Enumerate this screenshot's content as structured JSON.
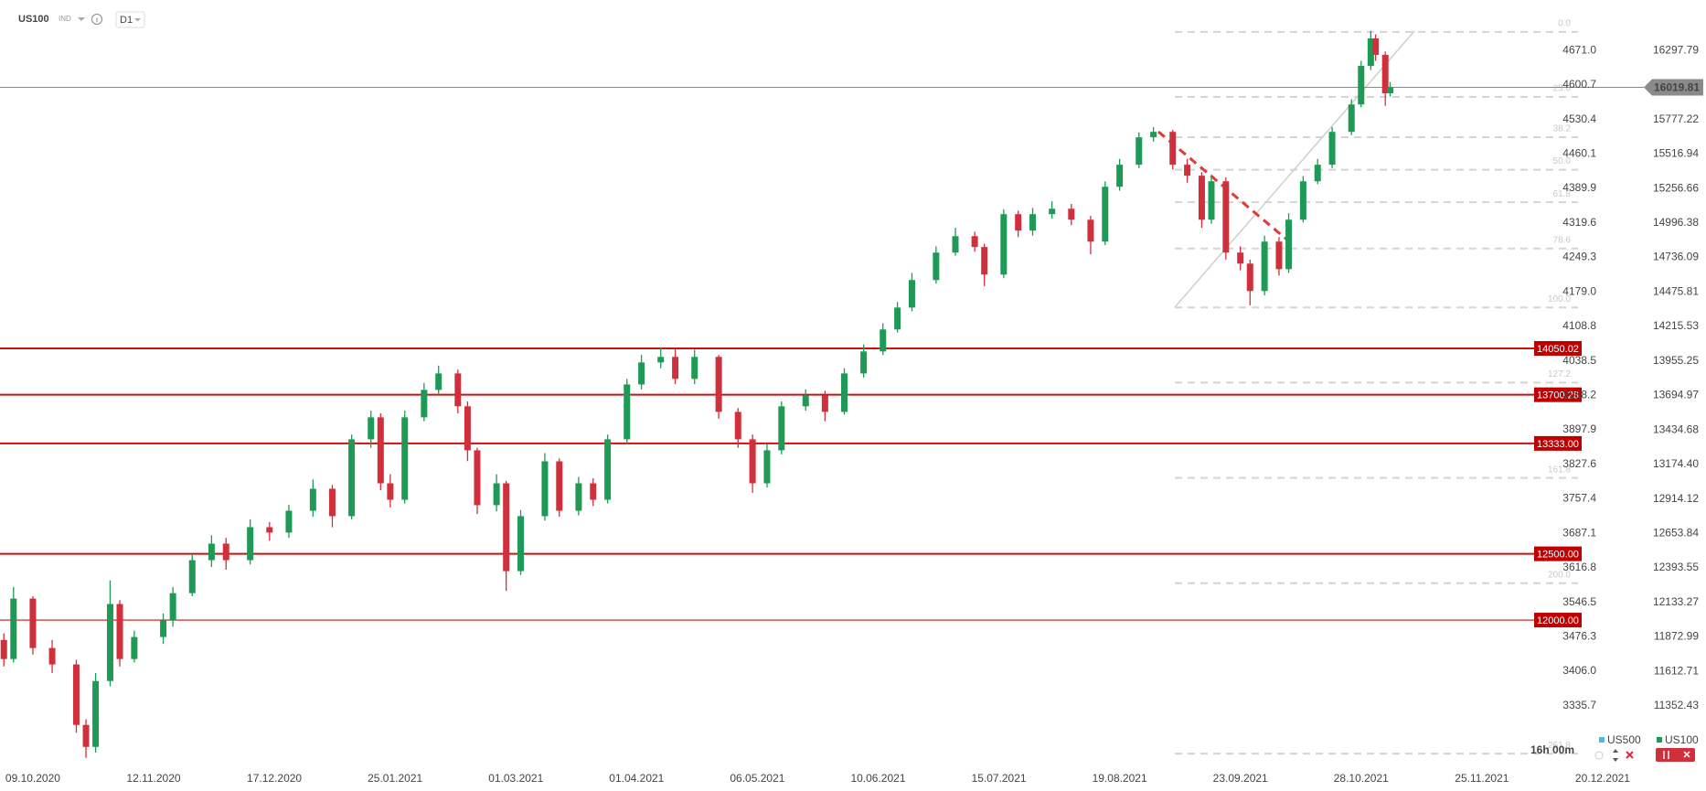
{
  "toolbar": {
    "symbol": "US100",
    "instrument_type": "IND",
    "interval": "D1"
  },
  "countdown": "16h 00m",
  "legend": [
    {
      "name": "US500",
      "color": "#4fb6e8"
    },
    {
      "name": "US100",
      "color": "#1f9a56"
    }
  ],
  "chart_data": {
    "type": "candlestick",
    "up_color": "#1f9a56",
    "down_color": "#d0303c",
    "xlim": [
      -6.8,
      346.4
    ],
    "xticks": [
      {
        "value": 0,
        "label": "09.10.2020"
      },
      {
        "value": 25,
        "label": "12.11.2020"
      },
      {
        "value": 50,
        "label": "17.12.2020"
      },
      {
        "value": 75,
        "label": "25.01.2021"
      },
      {
        "value": 100,
        "label": "01.03.2021"
      },
      {
        "value": 125,
        "label": "01.04.2021"
      },
      {
        "value": 150,
        "label": "06.05.2021"
      },
      {
        "value": 175,
        "label": "10.06.2021"
      },
      {
        "value": 200,
        "label": "15.07.2021"
      },
      {
        "value": 225,
        "label": "19.08.2021"
      },
      {
        "value": 250,
        "label": "23.09.2021"
      },
      {
        "value": 275,
        "label": "28.10.2021"
      },
      {
        "value": 300,
        "label": "25.11.2021"
      },
      {
        "value": 325,
        "label": "20.12.2021"
      }
    ],
    "ylim": [
      10855,
      16679
    ],
    "yticks": [
      16297.79,
      15777.22,
      15516.94,
      15256.66,
      14996.38,
      14736.09,
      14475.81,
      14215.53,
      13955.25,
      13694.97,
      13434.68,
      {
        "value": 13174.4,
        "label": "13174.40"
      },
      12914.12,
      12653.84,
      12393.55,
      12133.27,
      11872.99,
      11612.71,
      11352.43
    ],
    "y2lim": [
      3200.9,
      4774.0
    ],
    "y2ticks": [
      {
        "value": 4671,
        "label": "4671.0"
      },
      4600.7,
      4530.4,
      4460.1,
      4389.9,
      4319.6,
      4249.3,
      {
        "value": 4179,
        "label": "4179.0"
      },
      4108.8,
      4038.5,
      3968.2,
      3897.9,
      3827.6,
      3757.4,
      3687.1,
      3616.8,
      3546.5,
      3476.3,
      {
        "value": 3406,
        "label": "3406.0"
      },
      3335.7
    ],
    "current_price": 16019.81,
    "levels": [
      {
        "value": 14050.02,
        "label": "14050.02"
      },
      {
        "value": 13700.28,
        "label": "13700.28"
      },
      {
        "value": 13333,
        "label": "13333.00"
      },
      {
        "value": 12500,
        "label": "12500.00"
      },
      {
        "value": 12000,
        "label": "12000.00"
      }
    ],
    "fib_levels": [
      {
        "value": 16438.7,
        "label": "0.0"
      },
      {
        "value": 15947.7,
        "label": "23.6"
      },
      {
        "value": 15644.0,
        "label": "38.2"
      },
      {
        "value": 15398.5,
        "label": "50.0"
      },
      {
        "value": 15153.0,
        "label": "61.8"
      },
      {
        "value": 14803.5,
        "label": "78.6"
      },
      {
        "value": 14358.3,
        "label": "100.0"
      },
      {
        "value": 13792.4,
        "label": "127.2"
      },
      {
        "value": 13072.6,
        "label": "161.8"
      },
      {
        "value": 12277.9,
        "label": "200.0"
      },
      {
        "value": 10992.2,
        "label": "261.8"
      }
    ],
    "x": [
      -6,
      -4,
      0,
      4,
      9,
      11,
      13,
      16,
      18,
      21,
      27,
      29,
      33,
      37,
      40,
      45,
      49,
      53,
      58,
      62,
      66,
      70,
      72,
      74,
      77,
      81,
      84,
      88,
      90,
      92,
      96,
      98,
      101,
      106,
      109,
      113,
      116,
      119,
      123,
      126,
      130,
      133,
      137,
      142,
      146,
      149,
      152,
      155,
      160,
      164,
      168,
      172,
      176,
      179,
      182,
      187,
      191,
      195,
      197,
      201,
      204,
      207,
      211,
      215,
      219,
      222,
      225,
      229,
      232,
      236,
      239,
      242,
      244,
      247,
      250,
      252,
      255,
      258,
      260,
      263,
      266,
      269,
      273,
      275,
      277,
      278,
      280,
      281
    ],
    "open": [
      11850,
      11706,
      12162,
      11789,
      11665,
      11209,
      11043,
      11540,
      12121,
      11706,
      11872,
      11996,
      12203,
      12452,
      12577,
      12452,
      12701,
      12660,
      12825,
      12991,
      12784,
      13364,
      13530,
      13032,
      12908,
      13530,
      13737,
      13861,
      13613,
      13281,
      12867,
      13032,
      12369,
      12784,
      13198,
      12825,
      13032,
      12908,
      13364,
      13778,
      13944,
      13986,
      13820,
      13986,
      13571,
      13364,
      13032,
      13281,
      13613,
      13695,
      13571,
      13861,
      14027,
      14193,
      14358,
      14566,
      14773,
      14897,
      14815,
      14607,
      15063,
      14939,
      15063,
      15104,
      15021,
      14856,
      15270,
      15436,
      15643,
      15684,
      15436,
      15353,
      15021,
      15311,
      14773,
      14690,
      14483,
      14856,
      14648,
      15021,
      15311,
      15436,
      15684,
      15891,
      16182,
      16389,
      16265,
      15975
    ],
    "high": [
      11900,
      12250,
      12180,
      11850,
      11700,
      11250,
      11600,
      12300,
      12150,
      11920,
      12050,
      12250,
      12500,
      12640,
      12620,
      12760,
      12740,
      12870,
      13060,
      13020,
      13400,
      13580,
      13560,
      13100,
      13580,
      13790,
      13920,
      13890,
      13650,
      13300,
      13100,
      13050,
      12830,
      13260,
      13220,
      13080,
      13070,
      13400,
      13820,
      14000,
      14060,
      14050,
      14040,
      14000,
      13600,
      13400,
      13330,
      13650,
      13740,
      13730,
      13900,
      14080,
      14240,
      14400,
      14620,
      14820,
      14960,
      14930,
      14840,
      15100,
      15090,
      15110,
      15160,
      15140,
      15050,
      15310,
      15480,
      15680,
      15720,
      15700,
      15480,
      15380,
      15360,
      15340,
      14820,
      14720,
      14900,
      14890,
      15070,
      15350,
      15480,
      15720,
      15930,
      16220,
      16447,
      16420,
      16290,
      16060
    ],
    "low": [
      11650,
      11680,
      11740,
      11600,
      11150,
      10960,
      11000,
      11500,
      11650,
      11680,
      11820,
      11950,
      12180,
      12400,
      12380,
      12420,
      12600,
      12620,
      12780,
      12700,
      12760,
      13300,
      12980,
      12850,
      12880,
      13500,
      13700,
      13560,
      13200,
      12800,
      12820,
      12220,
      12340,
      12750,
      12780,
      12790,
      12860,
      12880,
      13330,
      13740,
      13900,
      13780,
      13780,
      13520,
      13300,
      12960,
      13000,
      13250,
      13580,
      13500,
      13550,
      13830,
      14000,
      14170,
      14330,
      14540,
      14750,
      14780,
      14520,
      14580,
      14890,
      14900,
      15030,
      14980,
      14760,
      14830,
      15240,
      15410,
      15610,
      15400,
      15300,
      14960,
      14990,
      14720,
      14640,
      14375,
      14450,
      14600,
      14620,
      15000,
      15290,
      15410,
      15660,
      15870,
      16150,
      16220,
      15880,
      15950
    ],
    "close": [
      11706,
      12162,
      11789,
      11665,
      11209,
      11043,
      11540,
      12121,
      11706,
      11872,
      11996,
      12203,
      12452,
      12577,
      12452,
      12701,
      12660,
      12825,
      12991,
      12784,
      13364,
      13530,
      13032,
      12908,
      13530,
      13737,
      13861,
      13613,
      13281,
      12867,
      13032,
      12369,
      12784,
      13198,
      12825,
      13032,
      12908,
      13364,
      13778,
      13944,
      13986,
      13820,
      13986,
      13571,
      13364,
      13032,
      13281,
      13613,
      13695,
      13571,
      13861,
      14027,
      14193,
      14358,
      14566,
      14773,
      14897,
      14815,
      14607,
      15063,
      14939,
      15063,
      15104,
      15021,
      14856,
      15270,
      15436,
      15643,
      15684,
      15436,
      15353,
      15021,
      15311,
      14773,
      14690,
      14483,
      14856,
      14648,
      15021,
      15311,
      15436,
      15684,
      15891,
      16182,
      16389,
      16265,
      15975,
      16019
    ]
  }
}
